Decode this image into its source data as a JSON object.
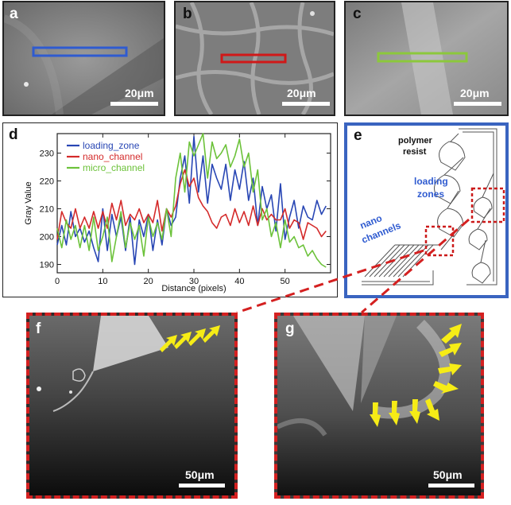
{
  "panels": {
    "a": {
      "label": "a",
      "scale": "20μm",
      "roi_color": "#2f5bd0"
    },
    "b": {
      "label": "b",
      "scale": "20μm",
      "roi_color": "#d01818"
    },
    "c": {
      "label": "c",
      "scale": "20μm",
      "roi_color": "#8cc83c"
    },
    "d": {
      "label": "d"
    },
    "e": {
      "label": "e",
      "text_polymer": "polymer",
      "text_resist": "resist",
      "text_loading": "loading",
      "text_zones": "zones",
      "text_nano": "nano",
      "text_channels": "channels",
      "frame_color": "#3a64c0",
      "highlight_color": "#cc1a1a"
    },
    "f": {
      "label": "f",
      "scale": "50μm"
    },
    "g": {
      "label": "g",
      "scale": "50μm"
    }
  },
  "colors": {
    "dash": "#d42020",
    "arrow": "#f6ec16"
  },
  "chart_data": {
    "type": "line",
    "xlabel": "Distance (pixels)",
    "ylabel": "Gray Value",
    "xlim": [
      0,
      60
    ],
    "ylim": [
      187,
      237
    ],
    "xticks": [
      0,
      10,
      20,
      30,
      40,
      50
    ],
    "yticks": [
      190,
      200,
      210,
      220,
      230
    ],
    "legend": [
      "loading_zone",
      "nano_channel",
      "micro_channel"
    ],
    "series": [
      {
        "name": "loading_zone",
        "color": "#2846b4",
        "values": [
          197,
          204,
          197,
          209,
          200,
          203,
          198,
          202,
          196,
          191,
          210,
          195,
          208,
          200,
          207,
          195,
          207,
          190,
          206,
          200,
          208,
          195,
          206,
          197,
          210,
          204,
          207,
          221,
          229,
          212,
          236,
          216,
          229,
          212,
          226,
          221,
          217,
          226,
          213,
          224,
          217,
          227,
          213,
          221,
          204,
          218,
          210,
          215,
          202,
          219,
          199,
          207,
          213,
          203,
          211,
          207,
          206,
          213,
          208,
          211
        ]
      },
      {
        "name": "nano_channel",
        "color": "#d42a2a",
        "values": [
          199,
          209,
          205,
          203,
          210,
          203,
          207,
          203,
          209,
          203,
          209,
          203,
          212,
          206,
          213,
          204,
          208,
          206,
          210,
          205,
          208,
          205,
          213,
          202,
          210,
          207,
          211,
          219,
          224,
          218,
          221,
          214,
          211,
          209,
          205,
          203,
          207,
          208,
          204,
          210,
          205,
          209,
          204,
          211,
          204,
          210,
          206,
          208,
          206,
          206,
          210,
          203,
          206,
          205,
          199,
          205,
          204,
          203,
          200,
          202
        ]
      },
      {
        "name": "micro_channel",
        "color": "#6cc23a",
        "values": [
          203,
          196,
          206,
          199,
          204,
          196,
          204,
          195,
          207,
          195,
          200,
          207,
          191,
          200,
          209,
          196,
          205,
          199,
          204,
          193,
          207,
          200,
          205,
          199,
          210,
          200,
          221,
          230,
          216,
          234,
          229,
          233,
          237,
          221,
          234,
          228,
          230,
          233,
          225,
          229,
          235,
          225,
          230,
          216,
          224,
          206,
          210,
          200,
          205,
          196,
          206,
          198,
          200,
          196,
          197,
          193,
          195,
          192,
          190,
          189
        ]
      }
    ]
  }
}
